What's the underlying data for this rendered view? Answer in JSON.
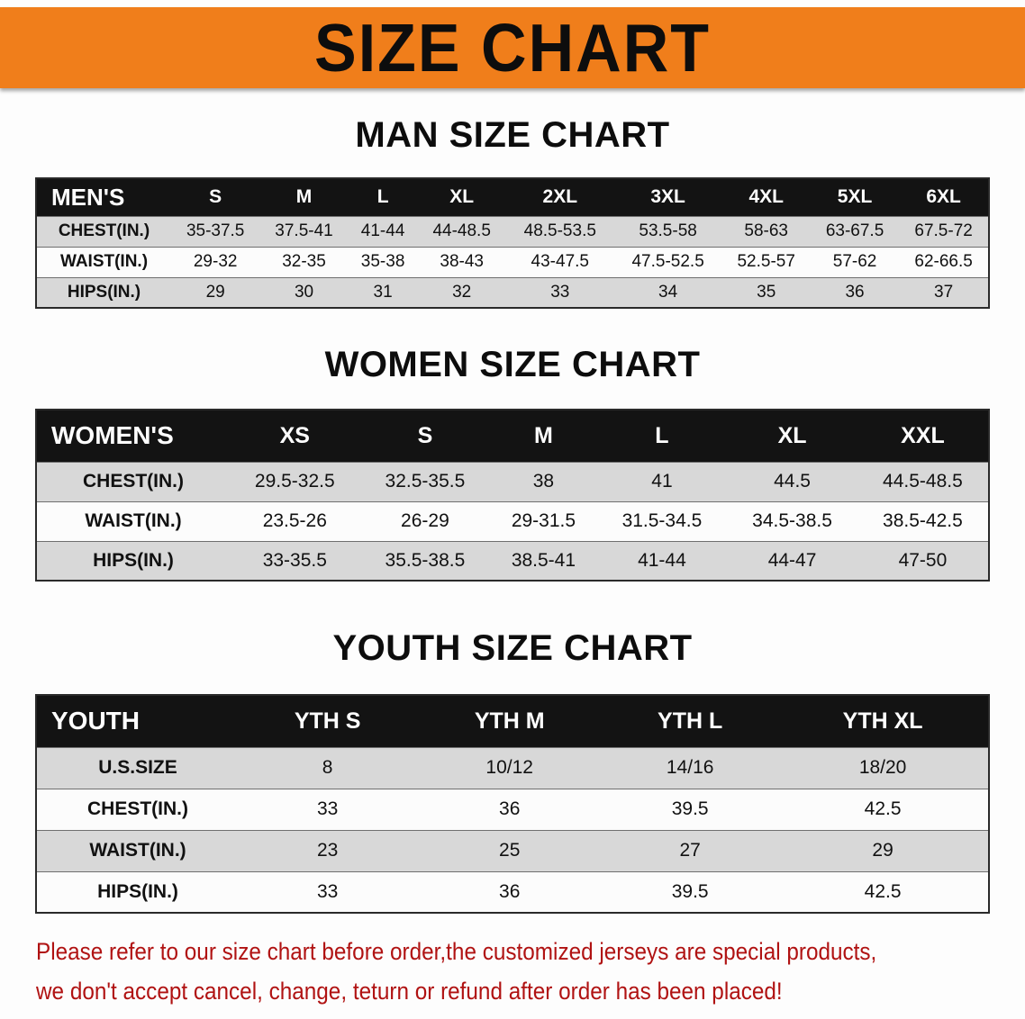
{
  "banner": {
    "title": "SIZE CHART",
    "bg_color": "#F07E1B"
  },
  "sections": [
    {
      "heading": "MAN SIZE CHART",
      "table": {
        "header": [
          "MEN'S",
          "S",
          "M",
          "L",
          "XL",
          "2XL",
          "3XL",
          "4XL",
          "5XL",
          "6XL"
        ],
        "rows": [
          {
            "label": "CHEST(IN.)",
            "values": [
              "35-37.5",
              "37.5-41",
              "41-44",
              "44-48.5",
              "48.5-53.5",
              "53.5-58",
              "58-63",
              "63-67.5",
              "67.5-72"
            ]
          },
          {
            "label": "WAIST(IN.)",
            "values": [
              "29-32",
              "32-35",
              "35-38",
              "38-43",
              "43-47.5",
              "47.5-52.5",
              "52.5-57",
              "57-62",
              "62-66.5"
            ]
          },
          {
            "label": "HIPS(IN.)",
            "values": [
              "29",
              "30",
              "31",
              "32",
              "33",
              "34",
              "35",
              "36",
              "37"
            ]
          }
        ]
      }
    },
    {
      "heading": "WOMEN SIZE CHART",
      "table": {
        "header": [
          "WOMEN'S",
          "XS",
          "S",
          "M",
          "L",
          "XL",
          "XXL"
        ],
        "rows": [
          {
            "label": "CHEST(IN.)",
            "values": [
              "29.5-32.5",
              "32.5-35.5",
              "38",
              "41",
              "44.5",
              "44.5-48.5"
            ]
          },
          {
            "label": "WAIST(IN.)",
            "values": [
              "23.5-26",
              "26-29",
              "29-31.5",
              "31.5-34.5",
              "34.5-38.5",
              "38.5-42.5"
            ]
          },
          {
            "label": "HIPS(IN.)",
            "values": [
              "33-35.5",
              "35.5-38.5",
              "38.5-41",
              "41-44",
              "44-47",
              "47-50"
            ]
          }
        ]
      }
    },
    {
      "heading": "YOUTH SIZE CHART",
      "table": {
        "header": [
          "YOUTH",
          "YTH S",
          "YTH M",
          "YTH L",
          "YTH XL"
        ],
        "rows": [
          {
            "label": "U.S.SIZE",
            "values": [
              "8",
              "10/12",
              "14/16",
              "18/20"
            ]
          },
          {
            "label": "CHEST(IN.)",
            "values": [
              "33",
              "36",
              "39.5",
              "42.5"
            ]
          },
          {
            "label": "WAIST(IN.)",
            "values": [
              "23",
              "25",
              "27",
              "29"
            ]
          },
          {
            "label": "HIPS(IN.)",
            "values": [
              "33",
              "36",
              "39.5",
              "42.5"
            ]
          }
        ]
      }
    }
  ],
  "disclaimer": {
    "line1": "Please refer to our size chart before order,the customized jerseys are special products,",
    "line2": "we don't accept cancel, change, teturn or refund after order has been placed!",
    "color": "#B01212"
  },
  "colors": {
    "banner_bg": "#F07E1B",
    "table_header_bg": "#131313",
    "row_stripe": "#D8D8D8"
  }
}
